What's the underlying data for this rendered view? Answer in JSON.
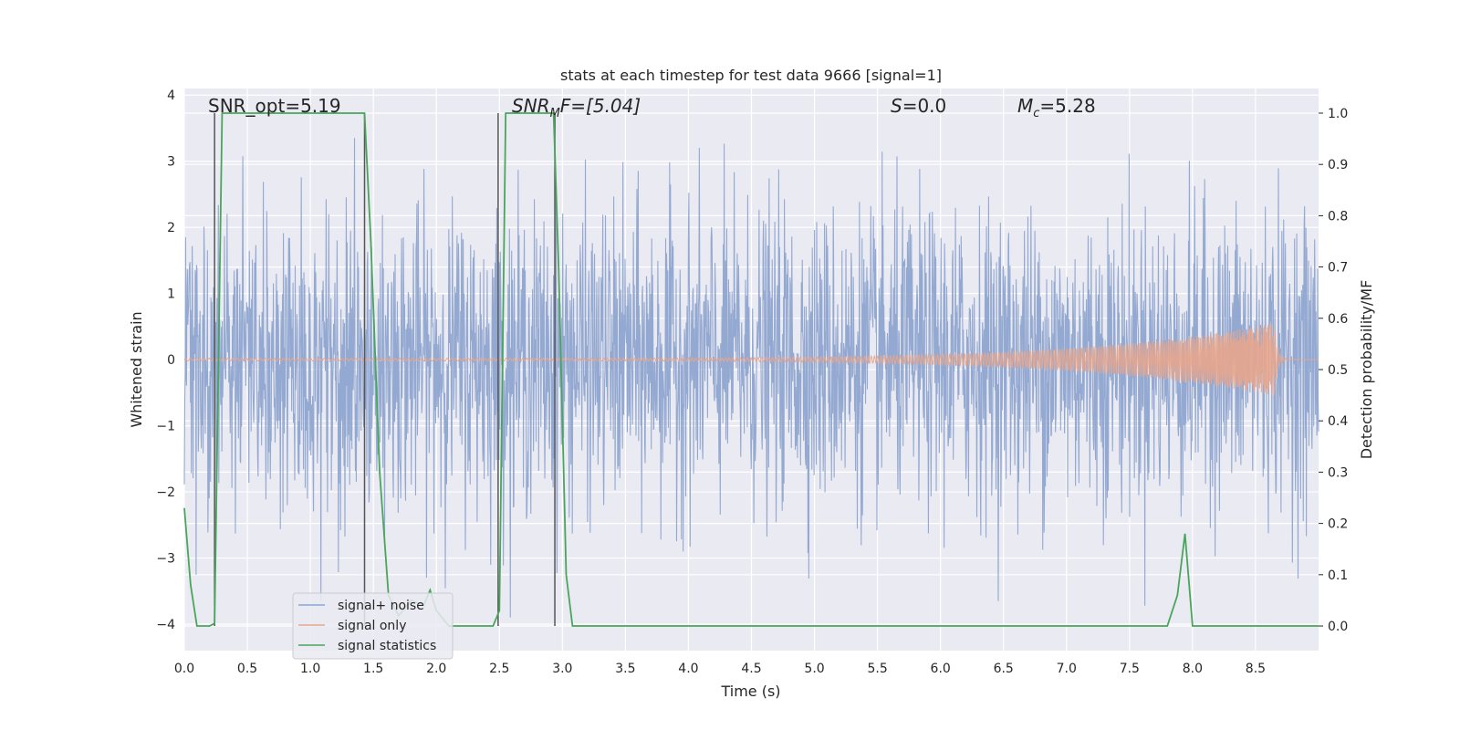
{
  "chart_data": {
    "type": "line",
    "title": "stats at each timestep for test data 9666 [signal=1]",
    "xlabel": "Time (s)",
    "ylabel": "Whitened strain",
    "ylabel_right": "Detection probability/MF",
    "xlim": [
      0,
      9
    ],
    "ylim": [
      -4.4,
      4.1
    ],
    "ylim_right": [
      -0.048,
      1.048
    ],
    "x_ticks": [
      0.0,
      0.5,
      1.0,
      1.5,
      2.0,
      2.5,
      3.0,
      3.5,
      4.0,
      4.5,
      5.0,
      5.5,
      6.0,
      6.5,
      7.0,
      7.5,
      8.0,
      8.5
    ],
    "x_tick_labels": [
      "0.0",
      "0.5",
      "1.0",
      "1.5",
      "2.0",
      "2.5",
      "3.0",
      "3.5",
      "4.0",
      "4.5",
      "5.0",
      "5.5",
      "6.0",
      "6.5",
      "7.0",
      "7.5",
      "8.0",
      "8.5"
    ],
    "y_ticks": [
      4,
      3,
      2,
      1,
      0,
      -1,
      -2,
      -3,
      -4
    ],
    "y_tick_labels": [
      "4",
      "3",
      "2",
      "1",
      "0",
      "−1",
      "−2",
      "−3",
      "−4"
    ],
    "y_ticks_right": [
      1.0,
      0.9,
      0.8,
      0.7,
      0.6,
      0.5,
      0.4,
      0.3,
      0.2,
      0.1,
      0.0
    ],
    "y_tick_labels_right": [
      "1.0",
      "0.9",
      "0.8",
      "0.7",
      "0.6",
      "0.5",
      "0.4",
      "0.3",
      "0.2",
      "0.1",
      "0.0"
    ],
    "grid": true,
    "legend_position": "lower-left",
    "legend": [
      {
        "label": "signal+ noise",
        "color": "#8fa5cf"
      },
      {
        "label": "signal only",
        "color": "#e7a58c"
      },
      {
        "label": "signal statistics",
        "color": "#4aa55c"
      }
    ],
    "annotations": {
      "snr_opt": "SNR_opt=5.19",
      "snr_mf_base": "SNR",
      "snr_mf_sub": "M",
      "snr_mf_rest": "F=[5.04]",
      "s_italic": "S",
      "s_rest": "=0.0",
      "mc_base": "M",
      "mc_sub": "c",
      "mc_rest": "=5.28"
    },
    "series": [
      {
        "name": "signal+ noise",
        "color": "#8fa5cf",
        "description": "whitened noisy strain, approx. gaussian noise between -3.5 and 3.6",
        "noise_std": 1.0,
        "seed": 9666
      },
      {
        "name": "signal only",
        "color": "#e7a58c",
        "chirp_amplitude_start": 0.02,
        "chirp_amplitude_end": 0.55,
        "chirp_merger_time": 8.65
      },
      {
        "name": "signal statistics",
        "color": "#4aa55c",
        "axis": "right",
        "x": [
          0.0,
          0.05,
          0.1,
          0.2,
          0.24,
          0.3,
          1.43,
          1.48,
          1.55,
          1.62,
          1.7,
          1.8,
          1.9,
          1.95,
          2.0,
          2.1,
          2.45,
          2.5,
          2.55,
          2.65,
          2.93,
          2.97,
          3.03,
          3.08,
          7.8,
          7.88,
          7.94,
          8.0,
          8.5,
          9.0
        ],
        "y": [
          0.23,
          0.08,
          0.0,
          0.0,
          0.005,
          1.0,
          1.0,
          0.75,
          0.3,
          0.06,
          0.02,
          0.05,
          0.04,
          0.07,
          0.03,
          0.0,
          0.0,
          0.03,
          1.0,
          1.0,
          1.0,
          0.7,
          0.1,
          0.0,
          0.0,
          0.06,
          0.18,
          0.0,
          0.0,
          0.0
        ]
      }
    ],
    "vertical_markers": [
      0.24,
      1.43,
      2.49,
      2.94
    ]
  }
}
